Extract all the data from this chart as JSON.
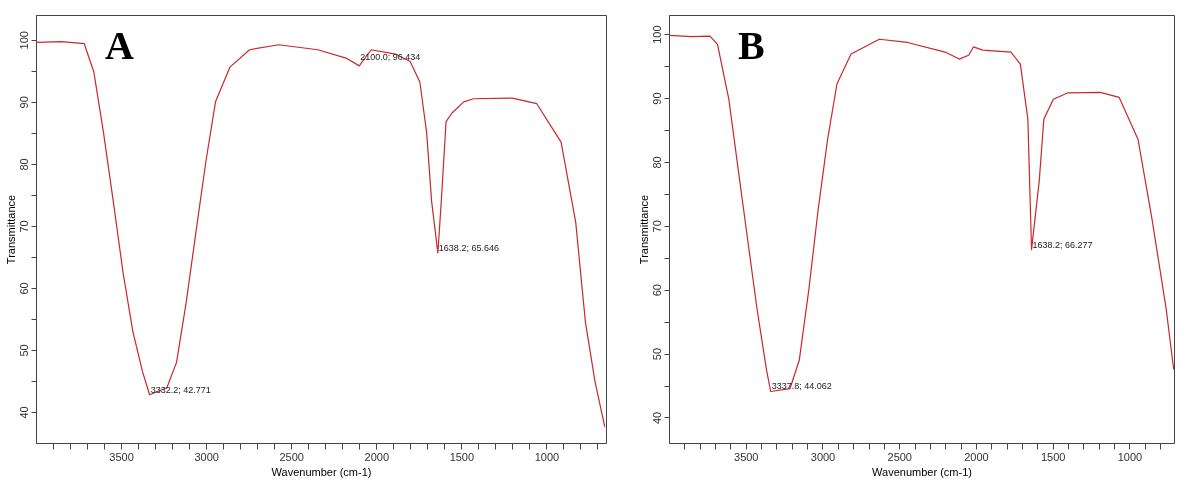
{
  "chart_data": [
    {
      "type": "line",
      "title": "A",
      "xlabel": "Wavenumber (cm-1)",
      "ylabel": "Transmittance",
      "xlim": [
        4000,
        650
      ],
      "ylim": [
        35,
        104
      ],
      "grid": false,
      "xticks": [
        {
          "value": 3900,
          "label": null
        },
        {
          "value": 3800,
          "label": null
        },
        {
          "value": 3700,
          "label": null
        },
        {
          "value": 3600,
          "label": null
        },
        3500,
        {
          "value": 3400,
          "label": null
        },
        {
          "value": 3300,
          "label": null
        },
        {
          "value": 3200,
          "label": null
        },
        {
          "value": 3100,
          "label": null
        },
        3000,
        {
          "value": 2900,
          "label": null
        },
        {
          "value": 2800,
          "label": null
        },
        {
          "value": 2700,
          "label": null
        },
        {
          "value": 2600,
          "label": null
        },
        2500,
        {
          "value": 2400,
          "label": null
        },
        {
          "value": 2300,
          "label": null
        },
        {
          "value": 2200,
          "label": null
        },
        {
          "value": 2100,
          "label": null
        },
        2000,
        {
          "value": 1900,
          "label": null
        },
        {
          "value": 1800,
          "label": null
        },
        {
          "value": 1700,
          "label": null
        },
        {
          "value": 1600,
          "label": null
        },
        1500,
        {
          "value": 1400,
          "label": null
        },
        {
          "value": 1300,
          "label": null
        },
        {
          "value": 1200,
          "label": null
        },
        {
          "value": 1100,
          "label": null
        },
        1000,
        {
          "value": 900,
          "label": null
        },
        {
          "value": 800,
          "label": null
        },
        {
          "value": 700,
          "label": null
        }
      ],
      "yticks": [
        40,
        {
          "value": 45,
          "label": null
        },
        50,
        {
          "value": 55,
          "label": null
        },
        60,
        {
          "value": 65,
          "label": null
        },
        70,
        {
          "value": 75,
          "label": null
        },
        80,
        {
          "value": 85,
          "label": null
        },
        90,
        {
          "value": 95,
          "label": null
        },
        100
      ],
      "series": [
        {
          "color": "#c8282e",
          "x": [
            4000,
            3850,
            3717,
            3660,
            3603,
            3546,
            3489,
            3431,
            3374,
            3332.2,
            3231,
            3174,
            3117,
            3060,
            3002,
            2945,
            2860,
            2745,
            2573,
            2344,
            2173,
            2100,
            2030,
            1887,
            1801,
            1744,
            1704,
            1675,
            1638.2,
            1618,
            1590,
            1555,
            1486,
            1429,
            1200,
            1057,
            914,
            828,
            771,
            714,
            657
          ],
          "values": [
            99.6,
            99.7,
            99.4,
            94.8,
            85,
            74,
            62.6,
            53,
            46.5,
            42.771,
            43.9,
            48,
            57.7,
            69,
            80.3,
            90,
            95.6,
            98.4,
            99.2,
            98.4,
            97,
            95.8,
            98.4,
            97.7,
            96.5,
            93.2,
            85,
            74,
            65.646,
            74,
            86.8,
            88.2,
            90,
            90.5,
            90.6,
            89.7,
            83.5,
            70.6,
            54.5,
            44.8,
            37.6
          ]
        }
      ],
      "annotations": [
        {
          "text": "3332.2; 42.771",
          "x": 3332.2,
          "y": 42.771
        },
        {
          "text": "2100.0; 96.434",
          "x": 2100,
          "y": 96.434
        },
        {
          "text": "1638.2; 65.646",
          "x": 1638.2,
          "y": 65.646
        }
      ]
    },
    {
      "type": "line",
      "title": "B",
      "xlabel": "Wavenumber (cm-1)",
      "ylabel": "Transmittance",
      "xlim": [
        4000,
        710
      ],
      "ylim": [
        36,
        103
      ],
      "grid": false,
      "xticks": [
        {
          "value": 3900,
          "label": null
        },
        {
          "value": 3800,
          "label": null
        },
        {
          "value": 3700,
          "label": null
        },
        {
          "value": 3600,
          "label": null
        },
        3500,
        {
          "value": 3400,
          "label": null
        },
        {
          "value": 3300,
          "label": null
        },
        {
          "value": 3200,
          "label": null
        },
        {
          "value": 3100,
          "label": null
        },
        3000,
        {
          "value": 2900,
          "label": null
        },
        {
          "value": 2800,
          "label": null
        },
        {
          "value": 2700,
          "label": null
        },
        {
          "value": 2600,
          "label": null
        },
        2500,
        {
          "value": 2400,
          "label": null
        },
        {
          "value": 2300,
          "label": null
        },
        {
          "value": 2200,
          "label": null
        },
        {
          "value": 2100,
          "label": null
        },
        2000,
        {
          "value": 1900,
          "label": null
        },
        {
          "value": 1800,
          "label": null
        },
        {
          "value": 1700,
          "label": null
        },
        {
          "value": 1600,
          "label": null
        },
        1500,
        {
          "value": 1400,
          "label": null
        },
        {
          "value": 1300,
          "label": null
        },
        {
          "value": 1200,
          "label": null
        },
        {
          "value": 1100,
          "label": null
        },
        1000,
        {
          "value": 900,
          "label": null
        },
        {
          "value": 800,
          "label": null
        }
      ],
      "yticks": [
        40,
        {
          "value": 45,
          "label": null
        },
        50,
        {
          "value": 55,
          "label": null
        },
        60,
        {
          "value": 65,
          "label": null
        },
        70,
        {
          "value": 75,
          "label": null
        },
        80,
        {
          "value": 85,
          "label": null
        },
        90,
        {
          "value": 95,
          "label": null
        },
        100
      ],
      "series": [
        {
          "color": "#c8282e",
          "x": [
            4000,
            3850,
            3733,
            3684,
            3610,
            3549,
            3488,
            3426,
            3365,
            3337.8,
            3212,
            3151,
            3089,
            3028,
            2967,
            2906,
            2814,
            2630,
            2446,
            2201,
            2109,
            2048,
            2017,
            1956,
            1772,
            1711,
            1662,
            1638.2,
            1588,
            1558,
            1496,
            1404,
            1190,
            1067,
            944,
            853,
            761,
            712
          ],
          "values": [
            99.8,
            99.6,
            99.7,
            98.4,
            89.8,
            78.8,
            67.9,
            56.9,
            47.5,
            44.062,
            44.5,
            49,
            60,
            72.6,
            83.5,
            92.2,
            96.9,
            99.2,
            98.7,
            97.2,
            96.1,
            96.7,
            98,
            97.5,
            97.2,
            95.3,
            86.7,
            66.277,
            77,
            86.7,
            89.8,
            90.8,
            90.9,
            90.1,
            83.5,
            71,
            57,
            47.5
          ]
        }
      ],
      "annotations": [
        {
          "text": "3337.8; 44.062",
          "x": 3337.8,
          "y": 44.062
        },
        {
          "text": "1638.2; 66.277",
          "x": 1638.2,
          "y": 66.277
        }
      ]
    }
  ]
}
